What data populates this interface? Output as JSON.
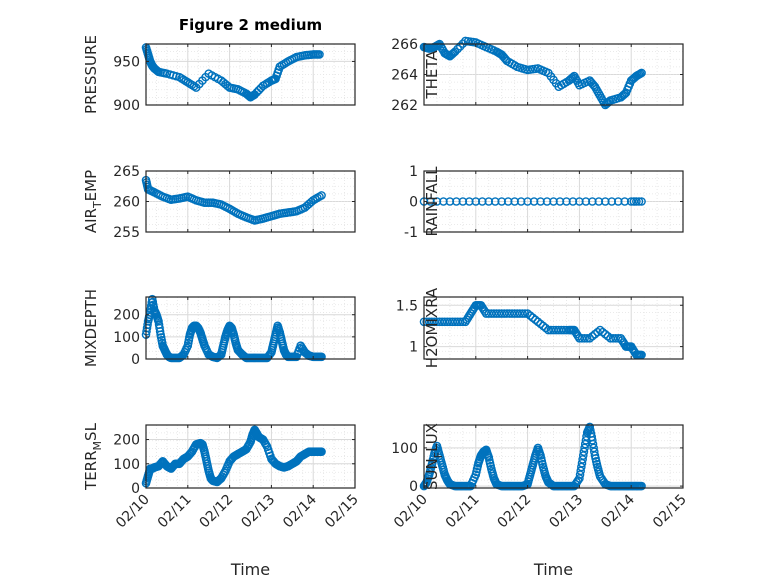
{
  "figure": {
    "title": "Figure 2 medium",
    "marker_color": "#0072BD",
    "axis_color": "#262626",
    "grid_color": "#d9d9d9"
  },
  "chart_data": [
    {
      "type": "scatter",
      "ylabel": "PRESSURE",
      "xlabel": "",
      "title": "Figure 2 medium",
      "xlim": [
        "02/10",
        "02/15"
      ],
      "xticks": [],
      "grid": true,
      "ylim": [
        900,
        970
      ],
      "yticks": [
        "900",
        "950"
      ],
      "series": [
        {
          "x": [
            10.0,
            10.05,
            10.1,
            10.15,
            10.2,
            10.3,
            10.5,
            10.8,
            11.0,
            11.2,
            11.5,
            11.8,
            12.0,
            12.2,
            12.4,
            12.5,
            12.6,
            12.8,
            13.0,
            13.1,
            13.2,
            13.4,
            13.6,
            13.8,
            14.0,
            14.15
          ],
          "y": [
            966,
            958,
            950,
            945,
            942,
            938,
            936,
            932,
            926,
            920,
            936,
            928,
            920,
            918,
            913,
            909,
            912,
            922,
            928,
            930,
            944,
            950,
            955,
            957,
            958,
            958
          ]
        }
      ]
    },
    {
      "type": "scatter",
      "ylabel": "THETA",
      "xlabel": "",
      "xlim": [
        "02/10",
        "02/15"
      ],
      "xticks": [],
      "grid": true,
      "ylim": [
        262,
        266
      ],
      "yticks": [
        "262",
        "264",
        "266"
      ],
      "series": [
        {
          "x": [
            10.0,
            10.1,
            10.2,
            10.3,
            10.4,
            10.5,
            10.6,
            10.8,
            11.0,
            11.2,
            11.4,
            11.5,
            11.6,
            11.8,
            12.0,
            12.2,
            12.4,
            12.6,
            12.8,
            12.9,
            13.0,
            13.2,
            13.3,
            13.4,
            13.5,
            13.6,
            13.8,
            13.9,
            14.0,
            14.1,
            14.2
          ],
          "y": [
            265.8,
            265.7,
            265.8,
            266.0,
            265.4,
            265.2,
            265.5,
            266.2,
            266.1,
            265.8,
            265.5,
            265.3,
            264.9,
            264.5,
            264.3,
            264.4,
            264.1,
            263.2,
            263.6,
            263.9,
            263.3,
            263.6,
            263.2,
            262.6,
            262.0,
            262.3,
            262.5,
            262.8,
            263.6,
            263.9,
            264.1
          ]
        }
      ]
    },
    {
      "type": "scatter",
      "ylabel": "AIR_TEMP",
      "xlabel": "",
      "xlim": [
        "02/10",
        "02/15"
      ],
      "xticks": [],
      "grid": true,
      "ylim": [
        255,
        265
      ],
      "yticks": [
        "255",
        "260",
        "265"
      ],
      "series": [
        {
          "x": [
            10.0,
            10.05,
            10.2,
            10.4,
            10.6,
            10.8,
            11.0,
            11.2,
            11.4,
            11.6,
            11.8,
            12.0,
            12.2,
            12.4,
            12.6,
            12.8,
            13.0,
            13.2,
            13.4,
            13.6,
            13.8,
            14.0,
            14.2
          ],
          "y": [
            263.5,
            262.0,
            261.5,
            260.8,
            260.3,
            260.5,
            260.8,
            260.2,
            259.8,
            259.8,
            259.5,
            258.8,
            258.0,
            257.4,
            256.9,
            257.2,
            257.6,
            258.0,
            258.2,
            258.4,
            259.0,
            260.2,
            261.0
          ]
        }
      ]
    },
    {
      "type": "scatter",
      "ylabel": "RAINFALL",
      "xlabel": "",
      "xlim": [
        "02/10",
        "02/15"
      ],
      "xticks": [],
      "grid": true,
      "ylim": [
        -1,
        1
      ],
      "yticks": [
        "-1",
        "0",
        "1"
      ],
      "series": [
        {
          "x": [
            10.0,
            10.5,
            11.0,
            11.5,
            12.0,
            12.5,
            13.0,
            13.5,
            14.0,
            14.2
          ],
          "y": [
            0,
            0,
            0,
            0,
            0,
            0,
            0,
            0,
            0,
            0
          ]
        }
      ]
    },
    {
      "type": "scatter",
      "ylabel": "MIXDEPTH",
      "xlabel": "",
      "xlim": [
        "02/10",
        "02/15"
      ],
      "xticks": [],
      "grid": true,
      "ylim": [
        0,
        280
      ],
      "yticks": [
        "0",
        "100",
        "200"
      ],
      "series": [
        {
          "x": [
            10.0,
            10.05,
            10.1,
            10.15,
            10.2,
            10.25,
            10.3,
            10.35,
            10.4,
            10.45,
            10.5,
            10.55,
            10.6,
            10.7,
            10.8,
            10.9,
            11.0,
            11.05,
            11.1,
            11.15,
            11.2,
            11.25,
            11.3,
            11.35,
            11.4,
            11.5,
            11.6,
            11.7,
            11.8,
            11.85,
            11.9,
            11.95,
            12.0,
            12.05,
            12.1,
            12.15,
            12.2,
            12.3,
            12.4,
            12.5,
            12.6,
            12.7,
            12.8,
            12.9,
            13.0,
            13.05,
            13.1,
            13.15,
            13.2,
            13.25,
            13.3,
            13.35,
            13.4,
            13.5,
            13.6,
            13.7,
            13.8,
            13.9,
            14.0,
            14.1,
            14.2
          ],
          "y": [
            110,
            170,
            210,
            270,
            220,
            200,
            170,
            110,
            60,
            40,
            20,
            10,
            5,
            5,
            5,
            20,
            60,
            110,
            140,
            150,
            150,
            140,
            120,
            90,
            60,
            20,
            10,
            5,
            20,
            60,
            100,
            130,
            150,
            140,
            110,
            70,
            40,
            20,
            5,
            5,
            5,
            5,
            5,
            5,
            30,
            70,
            110,
            150,
            120,
            80,
            40,
            20,
            10,
            10,
            10,
            60,
            30,
            15,
            10,
            10,
            10
          ]
        }
      ]
    },
    {
      "type": "scatter",
      "ylabel": "H2OMIXRA",
      "xlabel": "",
      "xlim": [
        "02/10",
        "02/15"
      ],
      "xticks": [],
      "grid": true,
      "ylim": [
        0.85,
        1.6
      ],
      "yticks": [
        "1",
        "1.5"
      ],
      "series": [
        {
          "x": [
            10.0,
            10.2,
            10.4,
            10.6,
            10.8,
            10.9,
            11.0,
            11.1,
            11.2,
            11.4,
            11.6,
            11.8,
            12.0,
            12.2,
            12.4,
            12.6,
            12.8,
            12.9,
            13.0,
            13.2,
            13.4,
            13.6,
            13.8,
            13.9,
            14.0,
            14.1,
            14.2
          ],
          "y": [
            1.3,
            1.3,
            1.3,
            1.3,
            1.3,
            1.4,
            1.5,
            1.5,
            1.4,
            1.4,
            1.4,
            1.4,
            1.4,
            1.3,
            1.2,
            1.2,
            1.2,
            1.2,
            1.1,
            1.1,
            1.2,
            1.1,
            1.1,
            1.0,
            1.0,
            0.9,
            0.9
          ]
        }
      ]
    },
    {
      "type": "scatter",
      "ylabel": "TERR_MSL",
      "xlabel": "Time",
      "xlim": [
        "02/10",
        "02/15"
      ],
      "xticks": [
        "02/10",
        "02/11",
        "02/12",
        "02/13",
        "02/14",
        "02/15"
      ],
      "grid": true,
      "ylim": [
        0,
        260
      ],
      "yticks": [
        "0",
        "100",
        "200"
      ],
      "series": [
        {
          "x": [
            10.0,
            10.05,
            10.1,
            10.15,
            10.2,
            10.3,
            10.4,
            10.5,
            10.6,
            10.7,
            10.8,
            10.9,
            11.0,
            11.1,
            11.2,
            11.3,
            11.35,
            11.4,
            11.45,
            11.5,
            11.55,
            11.6,
            11.7,
            11.8,
            11.9,
            12.0,
            12.1,
            12.2,
            12.3,
            12.4,
            12.5,
            12.55,
            12.6,
            12.65,
            12.7,
            12.8,
            12.9,
            13.0,
            13.1,
            13.2,
            13.3,
            13.4,
            13.5,
            13.6,
            13.7,
            13.8,
            13.9,
            14.0,
            14.1,
            14.2
          ],
          "y": [
            20,
            50,
            80,
            80,
            85,
            90,
            110,
            90,
            80,
            100,
            100,
            120,
            130,
            150,
            180,
            185,
            180,
            150,
            110,
            70,
            40,
            30,
            25,
            40,
            70,
            110,
            130,
            140,
            150,
            160,
            190,
            220,
            240,
            225,
            210,
            200,
            170,
            120,
            100,
            90,
            85,
            90,
            100,
            110,
            130,
            140,
            150,
            150,
            150,
            150
          ]
        }
      ]
    },
    {
      "type": "scatter",
      "ylabel": "SUN_FLUX",
      "xlabel": "Time",
      "xlim": [
        "02/10",
        "02/15"
      ],
      "xticks": [
        "02/10",
        "02/11",
        "02/12",
        "02/13",
        "02/14",
        "02/15"
      ],
      "grid": true,
      "ylim": [
        -5,
        160
      ],
      "yticks": [
        "0",
        "100"
      ],
      "series": [
        {
          "x": [
            10.0,
            10.05,
            10.1,
            10.15,
            10.2,
            10.25,
            10.3,
            10.35,
            10.4,
            10.45,
            10.5,
            10.6,
            10.7,
            10.8,
            10.9,
            11.0,
            11.05,
            11.1,
            11.15,
            11.2,
            11.25,
            11.3,
            11.35,
            11.4,
            11.5,
            11.6,
            11.7,
            11.8,
            11.9,
            12.0,
            12.05,
            12.1,
            12.15,
            12.2,
            12.25,
            12.3,
            12.35,
            12.4,
            12.5,
            12.6,
            12.7,
            12.8,
            12.9,
            13.0,
            13.05,
            13.1,
            13.15,
            13.2,
            13.25,
            13.3,
            13.35,
            13.4,
            13.5,
            13.6,
            13.7,
            13.8,
            13.9,
            14.0,
            14.1,
            14.2
          ],
          "y": [
            0,
            10,
            30,
            55,
            85,
            105,
            80,
            55,
            30,
            15,
            5,
            0,
            0,
            0,
            0,
            30,
            60,
            80,
            90,
            95,
            75,
            45,
            20,
            5,
            0,
            0,
            0,
            0,
            0,
            5,
            30,
            55,
            80,
            100,
            80,
            50,
            25,
            10,
            0,
            0,
            0,
            0,
            0,
            20,
            60,
            100,
            140,
            155,
            120,
            80,
            50,
            25,
            5,
            0,
            0,
            0,
            0,
            0,
            0,
            0
          ]
        }
      ]
    }
  ]
}
